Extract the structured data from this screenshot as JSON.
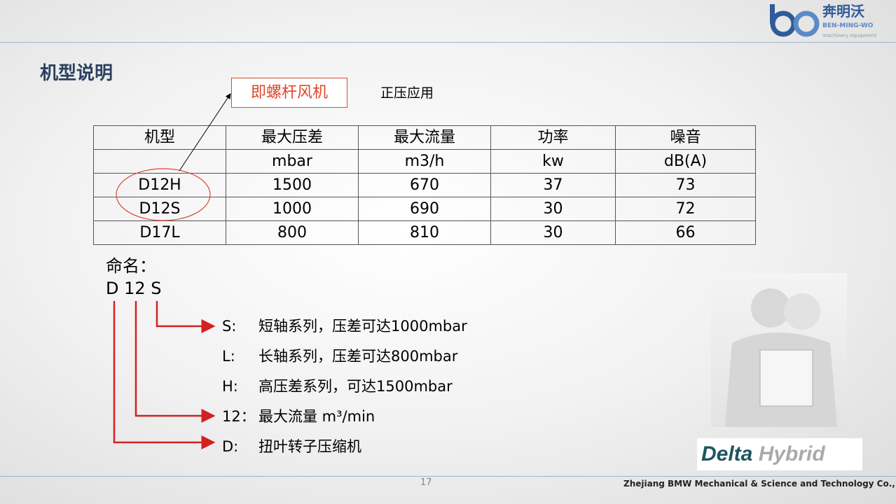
{
  "logo": {
    "cn": "奔明沃",
    "en": "BEN-MING-WO",
    "sub": "machinery equipment"
  },
  "title": "机型说明",
  "callout": "即螺杆风机",
  "note": "正压应用",
  "table": {
    "headers": [
      "机型",
      "最大压差",
      "最大流量",
      "功率",
      "噪音"
    ],
    "units": [
      "",
      "mbar",
      "m3/h",
      "kw",
      "dB(A)"
    ],
    "rows": [
      [
        "D12H",
        "1500",
        "670",
        "37",
        "73"
      ],
      [
        "D12S",
        "1000",
        "690",
        "30",
        "72"
      ],
      [
        "D17L",
        "800",
        "810",
        "30",
        "66"
      ]
    ]
  },
  "naming": {
    "label": "命名：",
    "code": "D 12 S",
    "items": [
      {
        "key": "S:",
        "text": "短轴系列，压差可达1000mbar"
      },
      {
        "key": "L:",
        "text": "长轴系列，压差可达800mbar"
      },
      {
        "key": "H:",
        "text": "高压差系列，可达1500mbar"
      },
      {
        "key": "12：",
        "text": "最大流量 m³/min"
      },
      {
        "key": "D:",
        "text": "扭叶转子压缩机"
      }
    ]
  },
  "brand": {
    "delta": "Delta",
    "hybrid": "Hybrid"
  },
  "page_number": "17",
  "company": "Zhejiang BMW Mechanical & Science and Technology Co.,Ltd",
  "colors": {
    "accent_red": "#e0452a",
    "title": "#2b4160",
    "logo_blue": "#2f5b9a"
  }
}
